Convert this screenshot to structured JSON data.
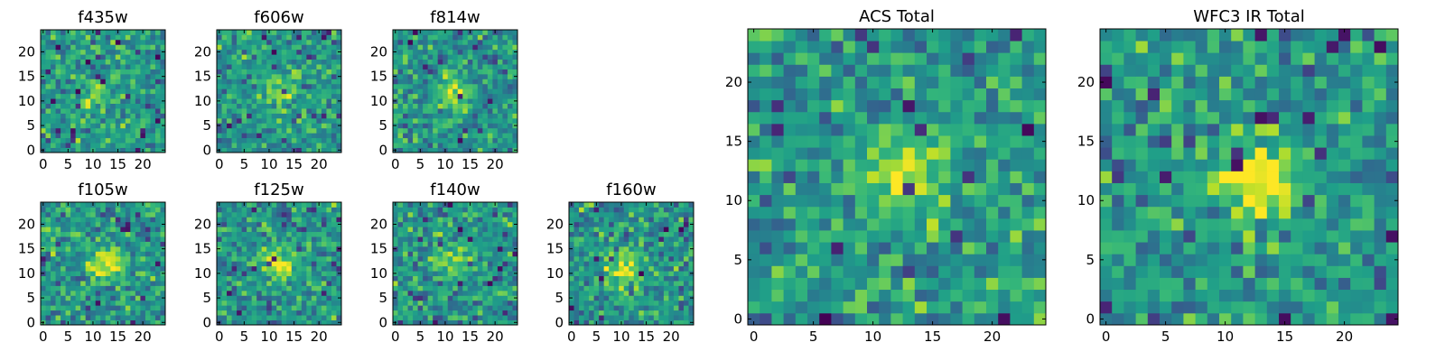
{
  "chart_data": [
    {
      "type": "heatmap",
      "title": "f435w",
      "xticks": [
        "0",
        "5",
        "10",
        "15",
        "20"
      ],
      "yticks": [
        "0",
        "5",
        "10",
        "15",
        "20"
      ],
      "xlim": [
        -0.5,
        24.5
      ],
      "ylim": [
        -0.5,
        24.5
      ],
      "grid_size": [
        25,
        25
      ],
      "colormap": "viridis",
      "center": [
        11,
        11
      ],
      "signal": 0.25,
      "seed": 11
    },
    {
      "type": "heatmap",
      "title": "f606w",
      "xticks": [
        "0",
        "5",
        "10",
        "15",
        "20"
      ],
      "yticks": [
        "0",
        "5",
        "10",
        "15",
        "20"
      ],
      "xlim": [
        -0.5,
        24.5
      ],
      "ylim": [
        -0.5,
        24.5
      ],
      "grid_size": [
        25,
        25
      ],
      "colormap": "viridis",
      "center": [
        12,
        12
      ],
      "signal": 0.4,
      "seed": 23
    },
    {
      "type": "heatmap",
      "title": "f814w",
      "xticks": [
        "0",
        "5",
        "10",
        "15",
        "20"
      ],
      "yticks": [
        "0",
        "5",
        "10",
        "15",
        "20"
      ],
      "xlim": [
        -0.5,
        24.5
      ],
      "ylim": [
        -0.5,
        24.5
      ],
      "grid_size": [
        25,
        25
      ],
      "colormap": "viridis",
      "center": [
        12,
        12
      ],
      "signal": 0.4,
      "seed": 37
    },
    {
      "type": "heatmap",
      "title": "f105w",
      "xticks": [
        "0",
        "5",
        "10",
        "15",
        "20"
      ],
      "yticks": [
        "0",
        "5",
        "10",
        "15",
        "20"
      ],
      "xlim": [
        -0.5,
        24.5
      ],
      "ylim": [
        -0.5,
        24.5
      ],
      "grid_size": [
        25,
        25
      ],
      "colormap": "viridis",
      "center": [
        13,
        12
      ],
      "signal": 0.5,
      "seed": 41
    },
    {
      "type": "heatmap",
      "title": "f125w",
      "xticks": [
        "0",
        "5",
        "10",
        "15",
        "20"
      ],
      "yticks": [
        "0",
        "5",
        "10",
        "15",
        "20"
      ],
      "xlim": [
        -0.5,
        24.5
      ],
      "ylim": [
        -0.5,
        24.5
      ],
      "grid_size": [
        25,
        25
      ],
      "colormap": "viridis",
      "center": [
        12,
        12
      ],
      "signal": 0.45,
      "seed": 53
    },
    {
      "type": "heatmap",
      "title": "f140w",
      "xticks": [
        "0",
        "5",
        "10",
        "15",
        "20"
      ],
      "yticks": [
        "0",
        "5",
        "10",
        "15",
        "20"
      ],
      "xlim": [
        -0.5,
        24.5
      ],
      "ylim": [
        -0.5,
        24.5
      ],
      "grid_size": [
        25,
        25
      ],
      "colormap": "viridis",
      "center": [
        12,
        12
      ],
      "signal": 0.35,
      "seed": 67
    },
    {
      "type": "heatmap",
      "title": "f160w",
      "xticks": [
        "0",
        "5",
        "10",
        "15",
        "20"
      ],
      "yticks": [
        "0",
        "5",
        "10",
        "15",
        "20"
      ],
      "xlim": [
        -0.5,
        24.5
      ],
      "ylim": [
        -0.5,
        24.5
      ],
      "grid_size": [
        25,
        25
      ],
      "colormap": "viridis",
      "center": [
        11,
        11
      ],
      "signal": 0.45,
      "seed": 79
    },
    {
      "type": "heatmap",
      "title": "ACS Total",
      "xticks": [
        "0",
        "5",
        "10",
        "15",
        "20"
      ],
      "yticks": [
        "0",
        "5",
        "10",
        "15",
        "20"
      ],
      "xlim": [
        -0.5,
        24.5
      ],
      "ylim": [
        -0.5,
        24.5
      ],
      "grid_size": [
        25,
        25
      ],
      "colormap": "viridis",
      "center": [
        12.5,
        12
      ],
      "signal": 0.45,
      "seed": 97
    },
    {
      "type": "heatmap",
      "title": "WFC3 IR Total",
      "xticks": [
        "0",
        "5",
        "10",
        "15",
        "20"
      ],
      "yticks": [
        "0",
        "5",
        "10",
        "15",
        "20"
      ],
      "xlim": [
        -0.5,
        24.5
      ],
      "ylim": [
        -0.5,
        24.5
      ],
      "grid_size": [
        25,
        25
      ],
      "colormap": "viridis",
      "center": [
        12.5,
        12
      ],
      "signal": 0.6,
      "seed": 113
    }
  ],
  "colors": {
    "viridis_stops": [
      "#440154",
      "#482878",
      "#3e4a89",
      "#31688e",
      "#26828e",
      "#1f9e89",
      "#35b779",
      "#6ece58",
      "#b5de2b",
      "#fde725"
    ],
    "axes_edge": "#000000",
    "background": "#ffffff"
  }
}
